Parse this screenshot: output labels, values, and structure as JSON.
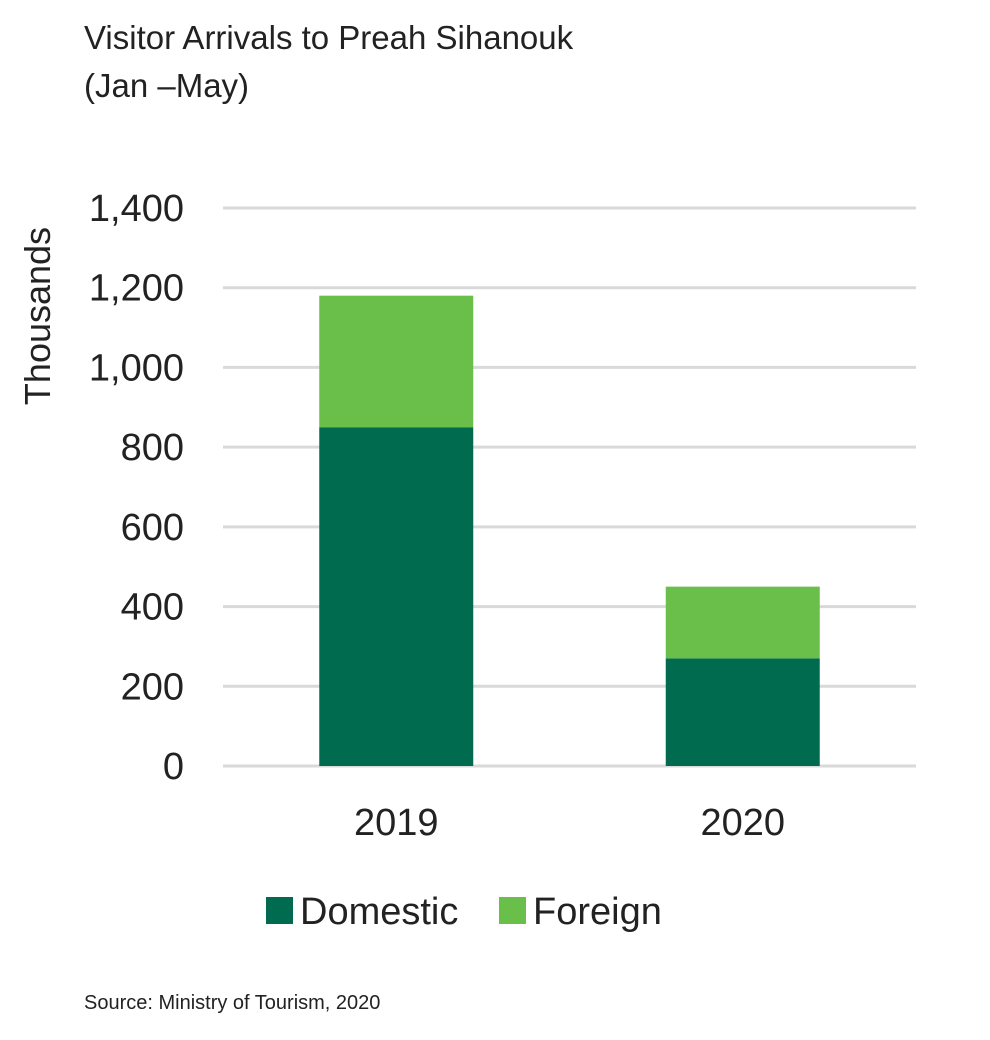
{
  "chart_data": {
    "type": "bar",
    "stacked": true,
    "title_line1": "Visitor Arrivals to Preah Sihanouk",
    "title_line2": "(Jan –May)",
    "xlabel": "",
    "ylabel": "Thousands",
    "categories": [
      "2019",
      "2020"
    ],
    "series": [
      {
        "name": "Domestic",
        "color": "#006b4f",
        "values": [
          850,
          270
        ]
      },
      {
        "name": "Foreign",
        "color": "#6abf4b",
        "values": [
          330,
          180
        ]
      }
    ],
    "ylim": [
      0,
      1400
    ],
    "yticks": [
      0,
      200,
      400,
      600,
      800,
      1000,
      1200,
      1400
    ],
    "ytick_labels": [
      "0",
      "200",
      "400",
      "600",
      "800",
      "1,000",
      "1,200",
      "1,400"
    ],
    "grid": true,
    "gridline_color": "#d9d9d9",
    "legend_position": "bottom"
  },
  "source": "Source:  Ministry of Tourism, 2020"
}
